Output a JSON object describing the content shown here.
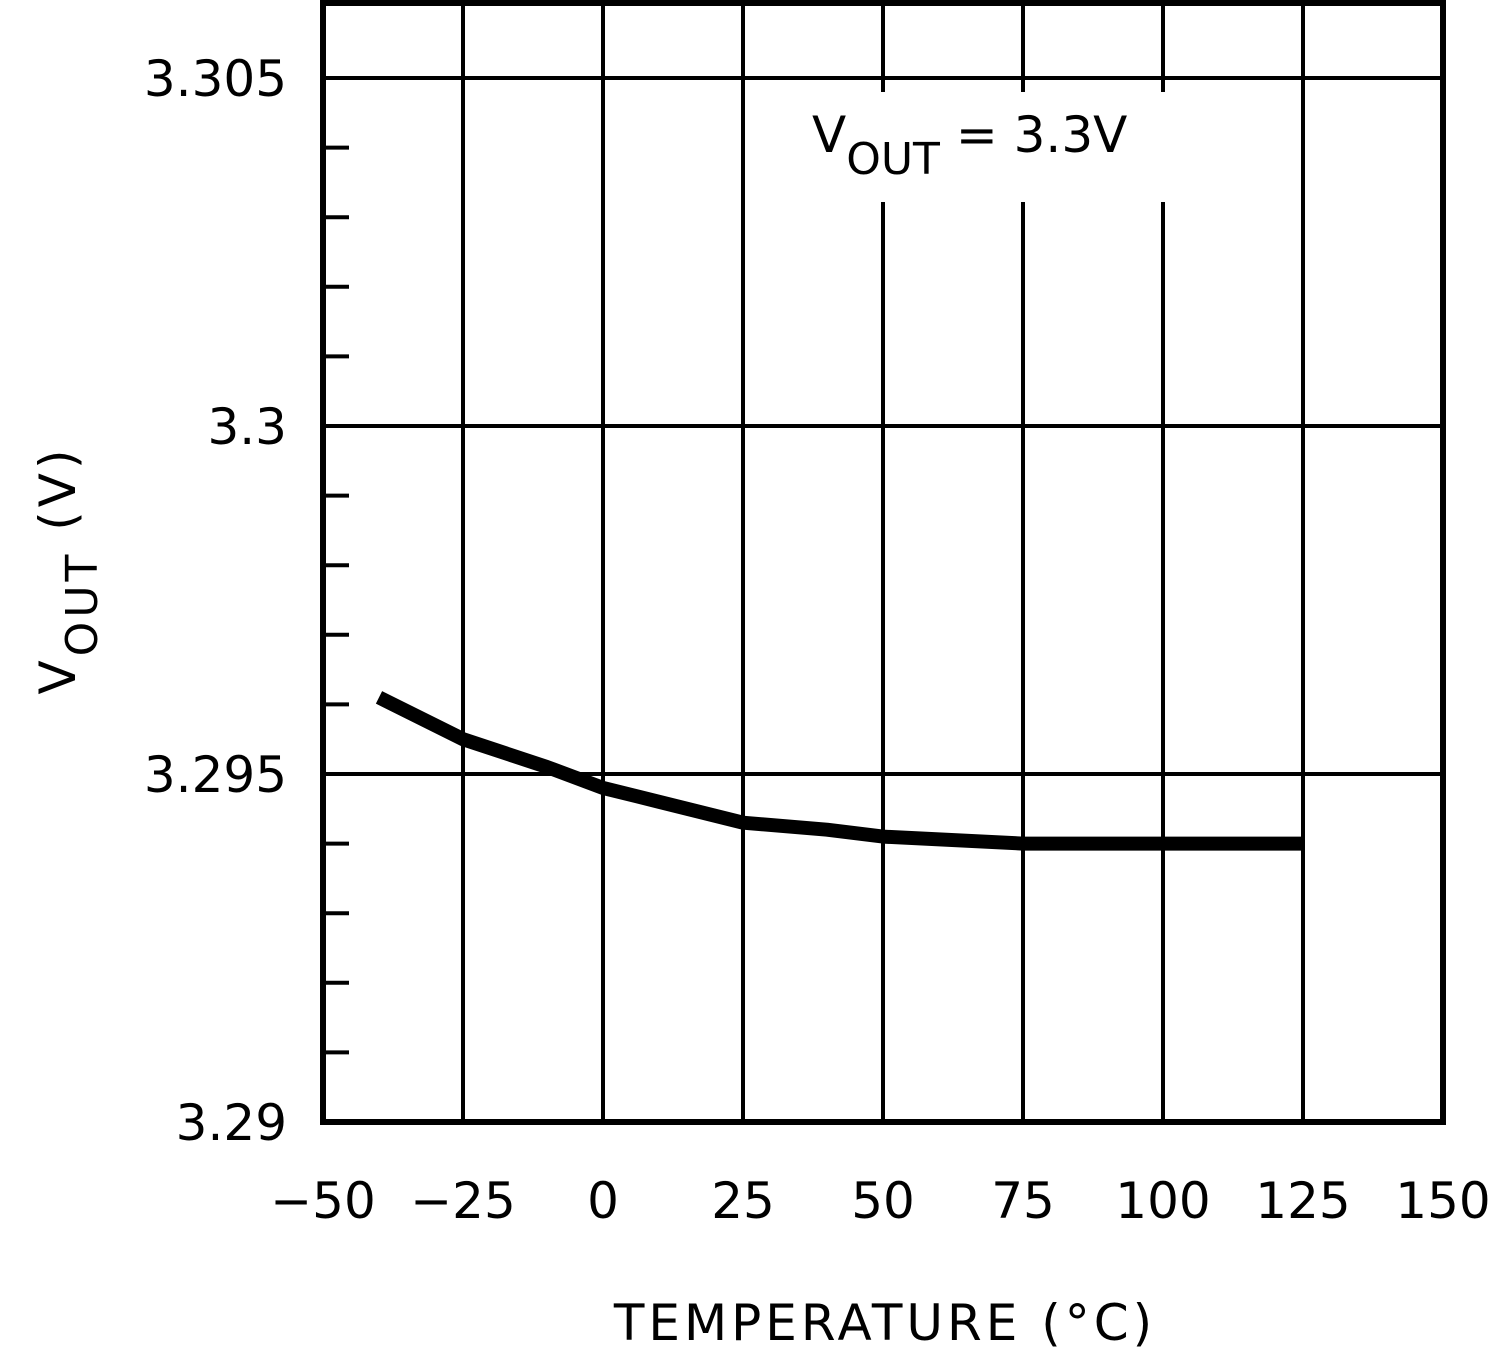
{
  "chart_data": {
    "type": "line",
    "title": "",
    "annotation": {
      "main": "V",
      "sub": "OUT",
      "rest": " = 3.3V"
    },
    "xlabel": "TEMPERATURE (°C)",
    "ylabel": {
      "main": "V",
      "sub": "OUT",
      "rest": " (V)"
    },
    "xlim": [
      -50,
      150
    ],
    "ylim": [
      3.29,
      3.3061
    ],
    "xticks": [
      -50,
      -25,
      0,
      25,
      50,
      75,
      100,
      125,
      150
    ],
    "xtick_labels": [
      "−50",
      "−25",
      "0",
      "25",
      "50",
      "75",
      "100",
      "125",
      "150"
    ],
    "yticks": [
      3.29,
      3.295,
      3.3,
      3.305
    ],
    "ytick_labels": [
      "3.29",
      "3.295",
      "3.3",
      "3.305"
    ],
    "y_minor_step": 0.001,
    "grid": true,
    "legend": null,
    "series": [
      {
        "name": "VOUT = 3.3V",
        "x": [
          -40,
          -25,
          -10,
          0,
          10,
          25,
          40,
          50,
          75,
          100,
          125
        ],
        "y": [
          3.2961,
          3.2955,
          3.2951,
          3.2948,
          3.2946,
          3.2943,
          3.2942,
          3.2941,
          3.294,
          3.294,
          3.294
        ]
      }
    ],
    "colors": {
      "line": "#000000",
      "grid": "#000000",
      "background": "#ffffff"
    }
  }
}
